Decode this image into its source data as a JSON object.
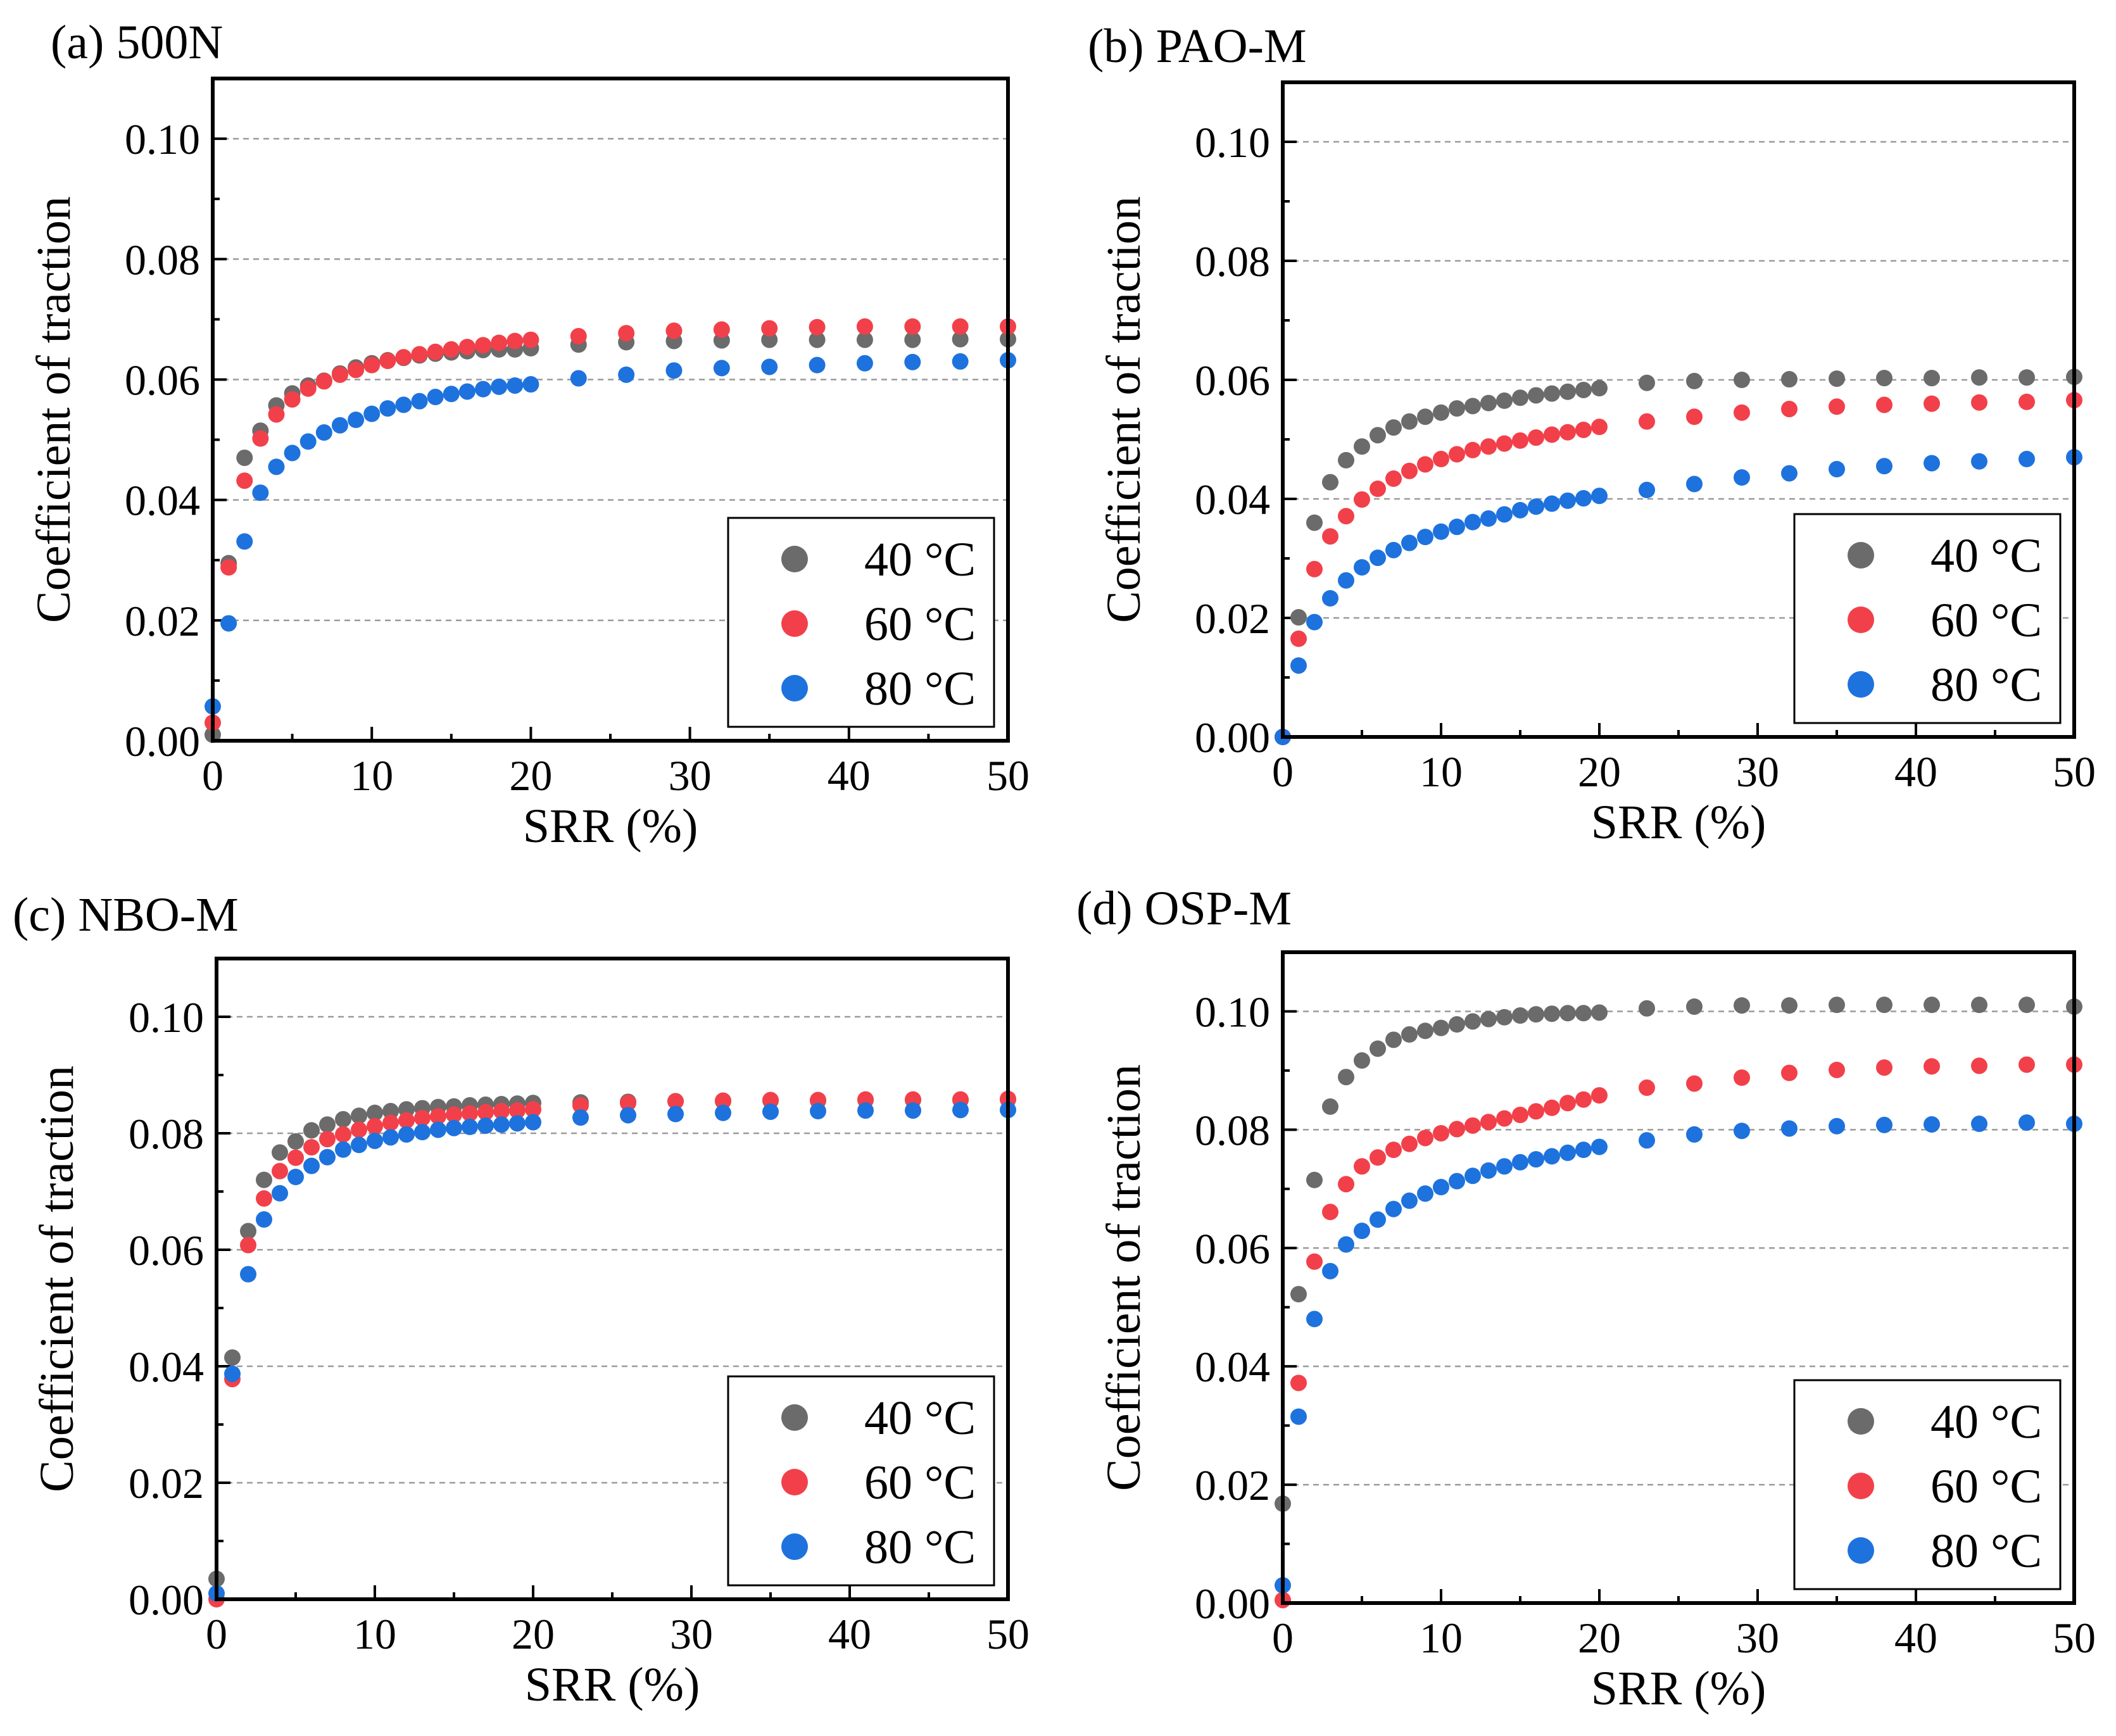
{
  "colors": {
    "40C": "#6b6b6b",
    "60C": "#f2404a",
    "80C": "#1e72dd"
  },
  "axis_common": {
    "xlabel": "SRR (%)",
    "ylabel": "Coefficient of traction",
    "xlim": [
      0,
      50
    ],
    "ylim": [
      0,
      0.11
    ],
    "xticks": [
      0,
      10,
      20,
      30,
      40,
      50
    ],
    "xtick_labels": [
      "0",
      "10",
      "20",
      "30",
      "40",
      "50"
    ],
    "yticks": [
      0,
      0.02,
      0.04,
      0.06,
      0.08,
      0.1
    ],
    "ytick_labels": [
      "0.00",
      "0.02",
      "0.04",
      "0.06",
      "0.08",
      "0.10"
    ]
  },
  "chart_data": [
    {
      "type": "scatter",
      "title": "(a) 500N",
      "xlabel": "SRR (%)",
      "ylabel": "Coefficient of traction",
      "xlim": [
        0,
        50
      ],
      "ylim": [
        0,
        0.11
      ],
      "grid": true,
      "legend": "bottom-right",
      "x": [
        0,
        1,
        2,
        3,
        4,
        5,
        6,
        7,
        8,
        9,
        10,
        11,
        12,
        13,
        14,
        15,
        16,
        17,
        18,
        19,
        20,
        23,
        26,
        29,
        32,
        35,
        38,
        41,
        44,
        47,
        50
      ],
      "series": [
        {
          "name": "40 °C",
          "color_key": "40C",
          "values": [
            0.001,
            0.0295,
            0.047,
            0.0515,
            0.0557,
            0.0577,
            0.059,
            0.0598,
            0.061,
            0.062,
            0.0627,
            0.0632,
            0.0636,
            0.064,
            0.0643,
            0.0645,
            0.0647,
            0.0649,
            0.065,
            0.065,
            0.0652,
            0.0658,
            0.0662,
            0.0664,
            0.0665,
            0.0666,
            0.0666,
            0.0666,
            0.0666,
            0.0667,
            0.0667
          ]
        },
        {
          "name": "60 °C",
          "color_key": "60C",
          "values": [
            0.003,
            0.0288,
            0.0432,
            0.0502,
            0.0542,
            0.0567,
            0.0585,
            0.0597,
            0.0608,
            0.0616,
            0.0624,
            0.0631,
            0.0637,
            0.0642,
            0.0646,
            0.065,
            0.0654,
            0.0657,
            0.0661,
            0.0664,
            0.0666,
            0.0672,
            0.0677,
            0.0681,
            0.0683,
            0.0685,
            0.0687,
            0.0688,
            0.0688,
            0.0688,
            0.0688
          ]
        },
        {
          "name": "80 °C",
          "color_key": "80C",
          "values": [
            0.0057,
            0.0195,
            0.0331,
            0.0412,
            0.0455,
            0.0478,
            0.0497,
            0.0512,
            0.0524,
            0.0533,
            0.0543,
            0.0552,
            0.0558,
            0.0564,
            0.0571,
            0.0576,
            0.058,
            0.0584,
            0.0588,
            0.059,
            0.0592,
            0.0602,
            0.0608,
            0.0615,
            0.0619,
            0.0621,
            0.0624,
            0.0627,
            0.0629,
            0.063,
            0.0632
          ]
        }
      ]
    },
    {
      "type": "scatter",
      "title": "(b) PAO-M",
      "xlabel": "SRR (%)",
      "ylabel": "Coefficient of traction",
      "xlim": [
        0,
        50
      ],
      "ylim": [
        0,
        0.11
      ],
      "grid": true,
      "legend": "bottom-right",
      "x": [
        0,
        1,
        2,
        3,
        4,
        5,
        6,
        7,
        8,
        9,
        10,
        11,
        12,
        13,
        14,
        15,
        16,
        17,
        18,
        19,
        20,
        23,
        26,
        29,
        32,
        35,
        38,
        41,
        44,
        47,
        50
      ],
      "series": [
        {
          "name": "40 °C",
          "color_key": "40C",
          "values": [
            0.0,
            0.0201,
            0.036,
            0.0428,
            0.0465,
            0.0488,
            0.0507,
            0.052,
            0.053,
            0.0538,
            0.0545,
            0.0552,
            0.0556,
            0.0561,
            0.0565,
            0.057,
            0.0574,
            0.0577,
            0.058,
            0.0583,
            0.0586,
            0.0595,
            0.0598,
            0.06,
            0.0601,
            0.0602,
            0.0603,
            0.0603,
            0.0604,
            0.0604,
            0.0605
          ]
        },
        {
          "name": "60 °C",
          "color_key": "60C",
          "values": [
            0.0,
            0.0165,
            0.0282,
            0.0337,
            0.0371,
            0.0399,
            0.0417,
            0.0434,
            0.0447,
            0.0458,
            0.0467,
            0.0475,
            0.0482,
            0.0488,
            0.0493,
            0.0498,
            0.0503,
            0.0508,
            0.0512,
            0.0516,
            0.0521,
            0.053,
            0.0538,
            0.0545,
            0.0551,
            0.0555,
            0.0558,
            0.056,
            0.0562,
            0.0563,
            0.0566
          ]
        },
        {
          "name": "80 °C",
          "color_key": "80C",
          "values": [
            0.0,
            0.012,
            0.0193,
            0.0233,
            0.0263,
            0.0285,
            0.0301,
            0.0314,
            0.0326,
            0.0336,
            0.0345,
            0.0353,
            0.0361,
            0.0367,
            0.0374,
            0.0381,
            0.0387,
            0.0392,
            0.0397,
            0.0401,
            0.0405,
            0.0415,
            0.0425,
            0.0436,
            0.0443,
            0.045,
            0.0455,
            0.046,
            0.0463,
            0.0467,
            0.047
          ]
        }
      ]
    },
    {
      "type": "scatter",
      "title": "(c) NBO-M",
      "xlabel": "SRR (%)",
      "ylabel": "Coefficient of traction",
      "xlim": [
        0,
        50
      ],
      "ylim": [
        0,
        0.11
      ],
      "grid": true,
      "legend": "bottom-right",
      "x": [
        0,
        1,
        2,
        3,
        4,
        5,
        6,
        7,
        8,
        9,
        10,
        11,
        12,
        13,
        14,
        15,
        16,
        17,
        18,
        19,
        20,
        23,
        26,
        29,
        32,
        35,
        38,
        41,
        44,
        47,
        50
      ],
      "series": [
        {
          "name": "40 °C",
          "color_key": "40C",
          "values": [
            0.0035,
            0.0415,
            0.0632,
            0.072,
            0.0767,
            0.0786,
            0.0805,
            0.0815,
            0.0824,
            0.083,
            0.0835,
            0.0838,
            0.0841,
            0.0843,
            0.0845,
            0.0846,
            0.0848,
            0.0849,
            0.085,
            0.0851,
            0.0852,
            0.0853,
            0.0854,
            0.0855,
            0.0855,
            0.0856,
            0.0856,
            0.0857,
            0.0857,
            0.0857,
            0.0858
          ]
        },
        {
          "name": "60 °C",
          "color_key": "60C",
          "values": [
            0.0,
            0.0378,
            0.0608,
            0.0688,
            0.0735,
            0.0758,
            0.0776,
            0.079,
            0.0798,
            0.0806,
            0.0812,
            0.0818,
            0.0822,
            0.0826,
            0.0829,
            0.0832,
            0.0834,
            0.0836,
            0.0838,
            0.0839,
            0.0841,
            0.0848,
            0.0852,
            0.0855,
            0.0856,
            0.0857,
            0.0857,
            0.0858,
            0.0858,
            0.0858,
            0.0859
          ]
        },
        {
          "name": "80 °C",
          "color_key": "80C",
          "values": [
            0.001,
            0.0387,
            0.0558,
            0.0652,
            0.0697,
            0.0725,
            0.0744,
            0.0759,
            0.0772,
            0.078,
            0.0787,
            0.0793,
            0.0798,
            0.0802,
            0.0806,
            0.0809,
            0.0811,
            0.0813,
            0.0815,
            0.0817,
            0.0819,
            0.0827,
            0.0831,
            0.0833,
            0.0835,
            0.0837,
            0.0838,
            0.0839,
            0.0839,
            0.084,
            0.084
          ]
        }
      ]
    },
    {
      "type": "scatter",
      "title": "(d) OSP-M",
      "xlabel": "SRR (%)",
      "ylabel": "Coefficient of traction",
      "xlim": [
        0,
        50
      ],
      "ylim": [
        0,
        0.11
      ],
      "grid": true,
      "legend": "bottom-right",
      "x": [
        0,
        1,
        2,
        3,
        4,
        5,
        6,
        7,
        8,
        9,
        10,
        11,
        12,
        13,
        14,
        15,
        16,
        17,
        18,
        19,
        20,
        23,
        26,
        29,
        32,
        35,
        38,
        41,
        44,
        47,
        50
      ],
      "series": [
        {
          "name": "40 °C",
          "color_key": "40C",
          "values": [
            0.0168,
            0.0522,
            0.0715,
            0.0839,
            0.0889,
            0.0917,
            0.0937,
            0.0952,
            0.0961,
            0.0967,
            0.0972,
            0.0978,
            0.0983,
            0.0987,
            0.099,
            0.0993,
            0.0995,
            0.0996,
            0.0997,
            0.0997,
            0.0998,
            0.1005,
            0.1008,
            0.101,
            0.101,
            0.1011,
            0.1011,
            0.1011,
            0.1011,
            0.1011,
            0.1008
          ]
        },
        {
          "name": "60 °C",
          "color_key": "60C",
          "values": [
            0.0005,
            0.0372,
            0.0577,
            0.0661,
            0.0708,
            0.0738,
            0.0753,
            0.0766,
            0.0776,
            0.0786,
            0.0794,
            0.0801,
            0.0807,
            0.0813,
            0.0819,
            0.0825,
            0.0831,
            0.0837,
            0.0845,
            0.0851,
            0.0858,
            0.0871,
            0.0878,
            0.0888,
            0.0896,
            0.0901,
            0.0905,
            0.0907,
            0.0908,
            0.091,
            0.091
          ]
        },
        {
          "name": "80 °C",
          "color_key": "80C",
          "values": [
            0.003,
            0.0315,
            0.048,
            0.0561,
            0.0606,
            0.0629,
            0.0648,
            0.0666,
            0.068,
            0.0692,
            0.0703,
            0.0713,
            0.0722,
            0.0731,
            0.0738,
            0.0745,
            0.075,
            0.0755,
            0.0761,
            0.0766,
            0.0771,
            0.0782,
            0.0792,
            0.0798,
            0.0802,
            0.0806,
            0.0808,
            0.0809,
            0.081,
            0.0812,
            0.081
          ]
        }
      ]
    }
  ]
}
